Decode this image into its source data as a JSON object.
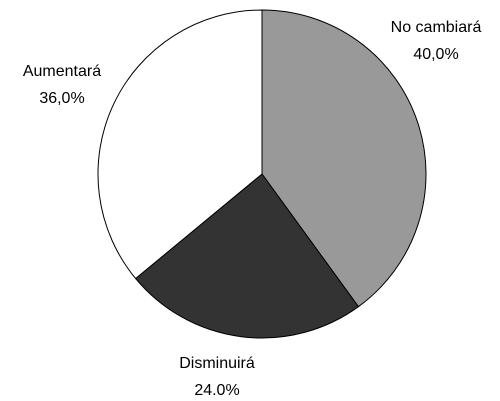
{
  "chart_data": {
    "type": "pie",
    "categories": [
      "No cambiará",
      "Disminuirá",
      "Aumentará"
    ],
    "values": [
      40,
      24,
      36
    ],
    "value_labels": [
      "40,0%",
      "24.0%",
      "36,0%"
    ],
    "colors": [
      "#999999",
      "#333333",
      "#ffffff"
    ]
  }
}
